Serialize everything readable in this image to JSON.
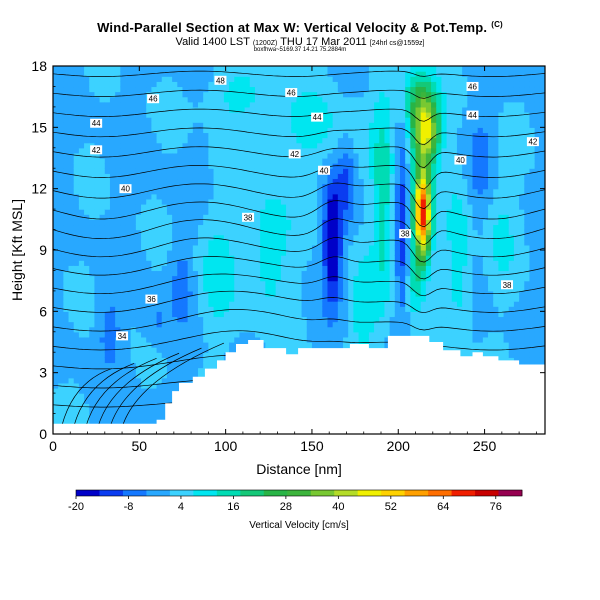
{
  "header": {
    "title": "Wind-Parallel Section at Max W: Vertical Velocity & Pot.Temp.",
    "copyright": "(C)",
    "subtitle_main": "Valid 1400 LST",
    "subtitle_utc": "(1200Z)",
    "subtitle_date": "THU 17 Mar 2011",
    "subtitle_run": "[24hrl cs@1559z]",
    "fileinfo": "boxfhwa~5169.37 14.21 75.2884m"
  },
  "chart_data": {
    "type": "heatmap",
    "xlabel": "Distance [nm]",
    "ylabel": "Height [Kft MSL]",
    "xlim": [
      0,
      285
    ],
    "ylim": [
      0,
      18
    ],
    "xticks": [
      "0",
      "50",
      "100",
      "150",
      "200",
      "250"
    ],
    "yticks": [
      "0",
      "3",
      "6",
      "9",
      "12",
      "15",
      "18"
    ],
    "colorbar": {
      "label": "Vertical Velocity [cm/s]",
      "ticks": [
        "-20",
        "-8",
        "4",
        "16",
        "28",
        "40",
        "52",
        "64",
        "76"
      ],
      "min": -20,
      "max": 82,
      "step": 6
    },
    "contour_labels": [
      {
        "text": "48",
        "x": 97,
        "y": 17.3
      },
      {
        "text": "46",
        "x": 58,
        "y": 16.4
      },
      {
        "text": "46",
        "x": 138,
        "y": 16.7
      },
      {
        "text": "46",
        "x": 243,
        "y": 17.0
      },
      {
        "text": "44",
        "x": 25,
        "y": 15.2
      },
      {
        "text": "44",
        "x": 153,
        "y": 15.5
      },
      {
        "text": "44",
        "x": 243,
        "y": 15.6
      },
      {
        "text": "42",
        "x": 25,
        "y": 13.9
      },
      {
        "text": "42",
        "x": 140,
        "y": 13.7
      },
      {
        "text": "42",
        "x": 278,
        "y": 14.3
      },
      {
        "text": "40",
        "x": 42,
        "y": 12.0
      },
      {
        "text": "40",
        "x": 157,
        "y": 12.9
      },
      {
        "text": "40",
        "x": 236,
        "y": 13.4
      },
      {
        "text": "38",
        "x": 113,
        "y": 10.6
      },
      {
        "text": "38",
        "x": 204,
        "y": 9.8
      },
      {
        "text": "38",
        "x": 263,
        "y": 7.3
      },
      {
        "text": "36",
        "x": 57,
        "y": 6.6
      },
      {
        "text": "34",
        "x": 40,
        "y": 4.8
      }
    ]
  }
}
